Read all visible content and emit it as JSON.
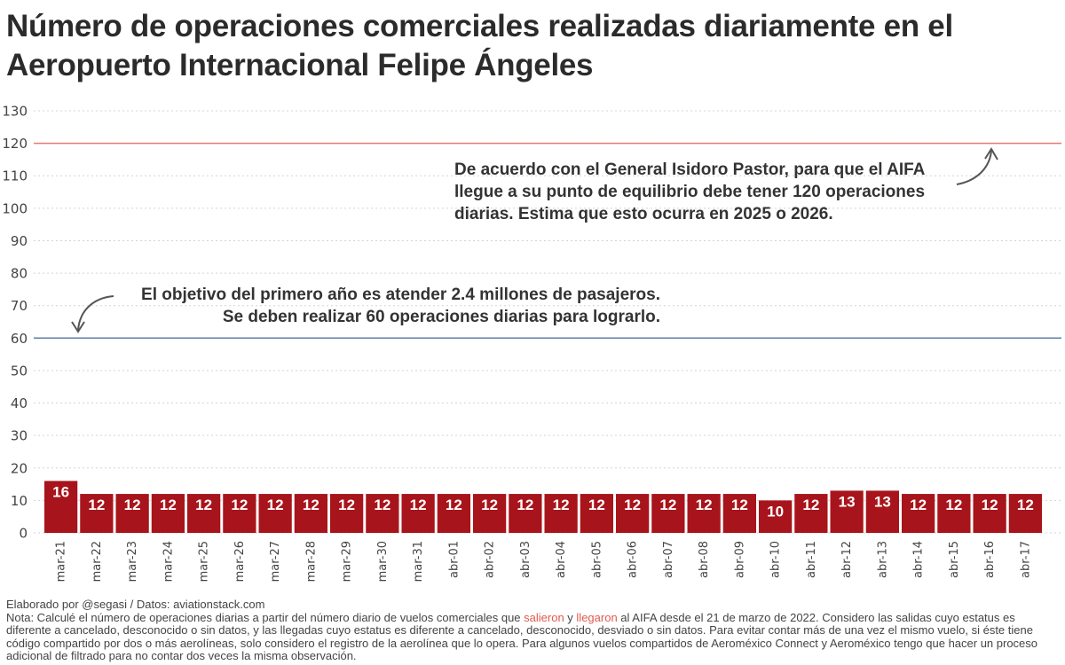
{
  "title": {
    "line1": "Número de operaciones comerciales realizadas diariamente en el",
    "line2": "Aeropuerto Internacional Felipe Ángeles"
  },
  "colors": {
    "bar": "#a8141b",
    "target_120": "#e8786b",
    "target_60": "#5f7fa8",
    "grid": "#d4d4d4",
    "arrow": "#555555",
    "note_highlight": "#e05a4e"
  },
  "chart_data": {
    "type": "bar",
    "title": "Número de operaciones comerciales realizadas diariamente en el Aeropuerto Internacional Felipe Ángeles",
    "xlabel": "",
    "ylabel": "",
    "ylim": [
      0,
      130
    ],
    "yticks": [
      0,
      10,
      20,
      30,
      40,
      50,
      60,
      70,
      80,
      90,
      100,
      110,
      120,
      130
    ],
    "grid": true,
    "categories": [
      "mar-21",
      "mar-22",
      "mar-23",
      "mar-24",
      "mar-25",
      "mar-26",
      "mar-27",
      "mar-28",
      "mar-29",
      "mar-30",
      "mar-31",
      "abr-01",
      "abr-02",
      "abr-03",
      "abr-04",
      "abr-05",
      "abr-06",
      "abr-07",
      "abr-08",
      "abr-09",
      "abr-10",
      "abr-11",
      "abr-12",
      "abr-13",
      "abr-14",
      "abr-15",
      "abr-16",
      "abr-17"
    ],
    "values": [
      16,
      12,
      12,
      12,
      12,
      12,
      12,
      12,
      12,
      12,
      12,
      12,
      12,
      12,
      12,
      12,
      12,
      12,
      12,
      12,
      10,
      12,
      13,
      13,
      12,
      12,
      12,
      12
    ],
    "reference_lines": [
      {
        "value": 120,
        "label": "punto de equilibrio"
      },
      {
        "value": 60,
        "label": "objetivo del primer año"
      }
    ],
    "annotations": [
      {
        "target": 120,
        "lines": [
          "De acuerdo con el General Isidoro Pastor, para que el AIFA",
          "llegue a su punto de equilibrio debe tener 120 operaciones",
          "diarias. Estima que esto ocurra en 2025 o 2026."
        ]
      },
      {
        "target": 60,
        "lines": [
          "El objetivo del primero año es atender 2.4 millones de pasajeros.",
          "Se deben realizar 60 operaciones diarias para lograrlo."
        ]
      }
    ]
  },
  "footer": {
    "credit": "Elaborado por @segasi / Datos: aviationstack.com",
    "note_part1": "Nota: Calculé el número de operaciones diarias a partir del número diario de vuelos comerciales que ",
    "note_salieron": "salieron",
    "note_y": " y ",
    "note_llegaron": "llegaron",
    "note_part2": " al AIFA desde el 21 de marzo de 2022. Considero las salidas cuyo estatus es diferente a cancelado, desconocido o sin datos, y las llegadas cuyo estatus es diferente a cancelado, desconocido, desviado o sin datos. Para evitar contar más de una vez el mismo vuelo, si éste tiene código compartido por dos o más aerolíneas, solo considero el registro de la aerolínea que lo opera. Para algunos vuelos compartidos de Aeroméxico Connect y Aeroméxico tengo que hacer un proceso adicional de filtrado para no contar dos veces la misma observación."
  }
}
